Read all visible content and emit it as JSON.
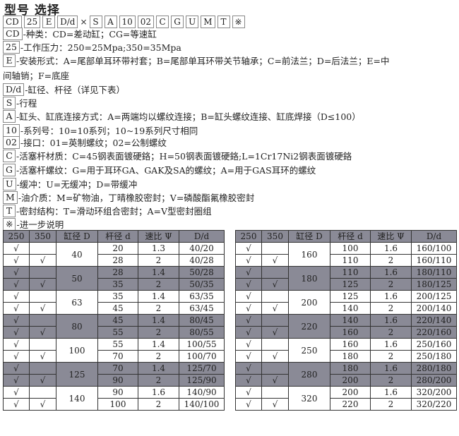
{
  "title": "型号  选择",
  "codes": [
    "CD",
    "25",
    "E",
    "D/d",
    "×",
    "S",
    "A",
    "10",
    "02",
    "C",
    "G",
    "U",
    "M",
    "T",
    "※"
  ],
  "descriptions": [
    {
      "code": "CD",
      "text": "-种类：CD=差动缸；CG=等速缸"
    },
    {
      "code": "25",
      "text": "-工作压力：250=25Mpa;350=35Mpa"
    },
    {
      "code": "E",
      "text": "-安装形式：A=尾部单耳环带衬套；B=尾部单耳环带关节轴承；C=前法兰；D=后法兰；E=中"
    },
    {
      "code": "",
      "text": "间轴销；F=底座"
    },
    {
      "code": "D/d",
      "text": "-缸径、杆径（详见下表）"
    },
    {
      "code": "S",
      "text": "-行程"
    },
    {
      "code": "A",
      "text": "-缸头、缸底连接方式：A=两端均以螺纹连接；B=缸头螺纹连接、缸底焊接（D≤100）"
    },
    {
      "code": "10",
      "text": "-系列号：10=10系列；10~19系列尺寸相同"
    },
    {
      "code": "02",
      "text": "-接口：01=英制螺纹；02=公制螺纹"
    },
    {
      "code": "C",
      "text": "-活塞杆材质：C=45钢表面镀硬鉻；H=50钢表面镀硬鉻;L=1Cr17Ni2钢表面镀硬鉻"
    },
    {
      "code": "G",
      "text": "-活塞杆螺纹：G=用于耳环GA、GAK及SA的螺纹；A=用于GAS耳环的螺纹"
    },
    {
      "code": "U",
      "text": "-缓冲：U=无缓冲；D=带缓冲"
    },
    {
      "code": "M",
      "text": "-油介质：M=矿物油，丁晴橡胶密封；V=磷酸酯氟橡胶密封"
    },
    {
      "code": "T",
      "text": "-密封结构：T=滑动环组合密封；A=V型密封圈组"
    },
    {
      "code": "※",
      "text": "-进一步说明"
    }
  ],
  "table": {
    "headers": [
      "250",
      "350",
      "缸径 D",
      "杆径 d",
      "速比 Ψ",
      "D/d"
    ],
    "left": [
      {
        "D": "40",
        "rows": [
          [
            "√",
            "",
            "20",
            "1.3",
            "40/20"
          ],
          [
            "√",
            "√",
            "28",
            "2",
            "40/28"
          ]
        ]
      },
      {
        "D": "50",
        "rows": [
          [
            "√",
            "",
            "28",
            "1.4",
            "50/28"
          ],
          [
            "√",
            "√",
            "35",
            "2",
            "50/35"
          ]
        ]
      },
      {
        "D": "63",
        "rows": [
          [
            "√",
            "",
            "35",
            "1.4",
            "63/35"
          ],
          [
            "√",
            "√",
            "45",
            "2",
            "63/45"
          ]
        ]
      },
      {
        "D": "80",
        "rows": [
          [
            "√",
            "",
            "45",
            "1.4",
            "80/45"
          ],
          [
            "√",
            "√",
            "55",
            "2",
            "80/55"
          ]
        ]
      },
      {
        "D": "100",
        "rows": [
          [
            "√",
            "",
            "55",
            "1.4",
            "100/55"
          ],
          [
            "√",
            "√",
            "70",
            "2",
            "100/70"
          ]
        ]
      },
      {
        "D": "125",
        "rows": [
          [
            "√",
            "",
            "70",
            "1.4",
            "125/70"
          ],
          [
            "√",
            "√",
            "90",
            "2",
            "125/90"
          ]
        ]
      },
      {
        "D": "140",
        "rows": [
          [
            "√",
            "",
            "90",
            "1.6",
            "140/90"
          ],
          [
            "√",
            "√",
            "100",
            "2",
            "140/100"
          ]
        ]
      }
    ],
    "right": [
      {
        "D": "160",
        "rows": [
          [
            "√",
            "",
            "100",
            "1.6",
            "160/100"
          ],
          [
            "√",
            "√",
            "110",
            "2",
            "160/110"
          ]
        ]
      },
      {
        "D": "180",
        "rows": [
          [
            "√",
            "",
            "110",
            "1.6",
            "180/110"
          ],
          [
            "√",
            "√",
            "125",
            "2",
            "180/125"
          ]
        ]
      },
      {
        "D": "200",
        "rows": [
          [
            "√",
            "",
            "125",
            "1.6",
            "200/125"
          ],
          [
            "√",
            "√",
            "140",
            "2",
            "200/140"
          ]
        ]
      },
      {
        "D": "220",
        "rows": [
          [
            "√",
            "",
            "140",
            "1.6",
            "220/140"
          ],
          [
            "√",
            "√",
            "160",
            "2",
            "220/160"
          ]
        ]
      },
      {
        "D": "250",
        "rows": [
          [
            "√",
            "",
            "160",
            "1.6",
            "250/160"
          ],
          [
            "√",
            "√",
            "180",
            "2",
            "250/180"
          ]
        ]
      },
      {
        "D": "280",
        "rows": [
          [
            "√",
            "",
            "180",
            "1.6",
            "280/180"
          ],
          [
            "√",
            "√",
            "200",
            "2",
            "280/200"
          ]
        ]
      },
      {
        "D": "320",
        "rows": [
          [
            "√",
            "",
            "200",
            "1.6",
            "320/200"
          ],
          [
            "√",
            "√",
            "220",
            "2",
            "320/220"
          ]
        ]
      }
    ]
  },
  "colors": {
    "shade": "#8a8a96"
  }
}
